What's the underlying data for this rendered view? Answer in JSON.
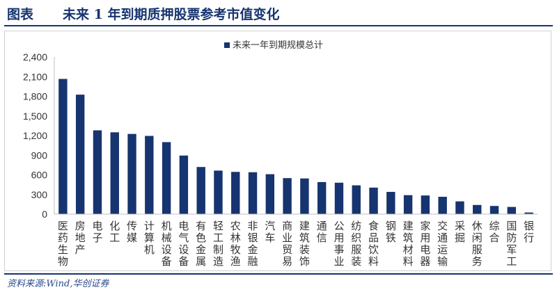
{
  "header": {
    "label": "图表",
    "title": "未来 1 年到期质押股票参考市值变化"
  },
  "footer": {
    "source": "资料来源:Wind,华创证券"
  },
  "colors": {
    "bar": "#16346f",
    "axis": "#bfbfbf",
    "tick_text": "#333333"
  },
  "chart_data": {
    "type": "bar",
    "title": "",
    "xlabel": "",
    "ylabel": "",
    "ylim": [
      0,
      2400
    ],
    "yticks": [
      "0",
      "300",
      "600",
      "900",
      "1,200",
      "1,500",
      "1,800",
      "2,100",
      "2,400"
    ],
    "grid": false,
    "legend": "top-center",
    "categories": [
      "医药生物",
      "房地产",
      "电子",
      "化工",
      "传媒",
      "计算机",
      "机械设备",
      "电气设备",
      "有色金属",
      "轻工制造",
      "农林牧渔",
      "非银金融",
      "汽车",
      "商业贸易",
      "建筑装饰",
      "通信",
      "公用事业",
      "纺织服装",
      "食品饮料",
      "钢铁",
      "建筑材料",
      "家用电器",
      "交通运输",
      "采掘",
      "休闲服务",
      "综合",
      "国防军工",
      "银行"
    ],
    "series": [
      {
        "name": "未来一年到期规模总计",
        "values": [
          2065,
          1825,
          1280,
          1250,
          1225,
          1195,
          1100,
          895,
          720,
          665,
          645,
          640,
          610,
          550,
          545,
          490,
          480,
          440,
          405,
          340,
          290,
          285,
          265,
          195,
          140,
          125,
          110,
          25
        ]
      }
    ]
  }
}
